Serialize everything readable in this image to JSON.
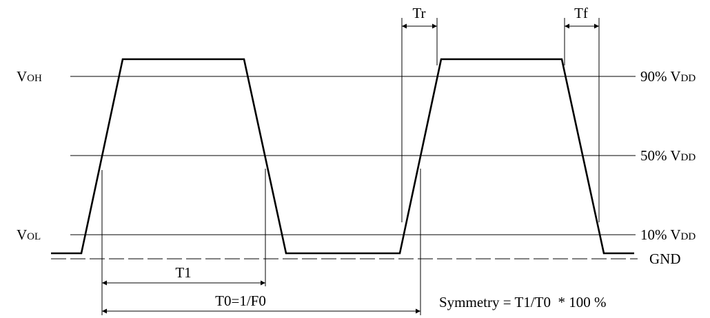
{
  "left_labels": {
    "voh": {
      "main": "V",
      "sub": "OH"
    },
    "vol": {
      "main": "V",
      "sub": "OL"
    }
  },
  "right_labels": {
    "p90": {
      "main": "90% V",
      "sub": "DD"
    },
    "p50": {
      "main": "50% V",
      "sub": "DD"
    },
    "p10": {
      "main": "10% V",
      "sub": "DD"
    },
    "gnd": "GND"
  },
  "measurements": {
    "t1": "T1",
    "t0": "T0=1/F0",
    "tr": "Tr",
    "tf": "Tf"
  },
  "formula": "Symmetry = T1/T0  * 100 %"
}
